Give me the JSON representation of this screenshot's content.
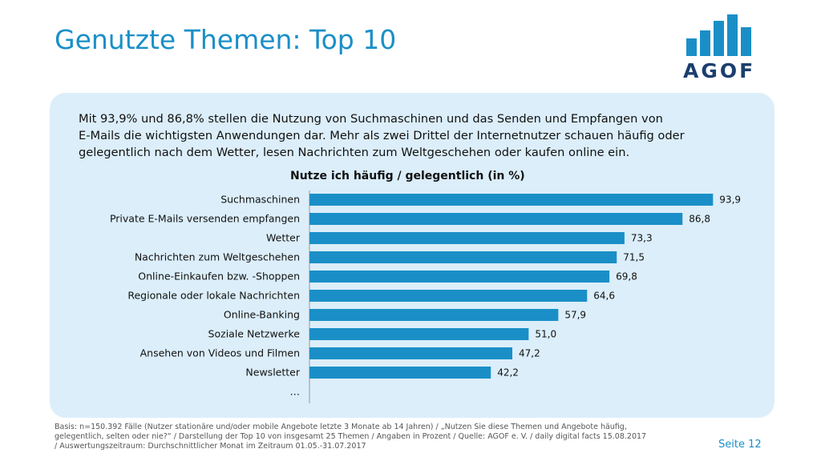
{
  "slide": {
    "title": "Genutzte Themen: Top 10",
    "intro_lines": [
      "Mit 93,9% und 86,8% stellen die Nutzung von Suchmaschinen und das Senden und Empfangen von",
      "E-Mails die wichtigsten Anwendungen dar. Mehr als zwei Drittel der Internetnutzer schauen häufig oder",
      "gelegentlich nach dem Wetter, lesen Nachrichten zum Weltgeschehen oder kaufen online ein."
    ],
    "footnote_lines": [
      "Basis: n=150.392 Fälle (Nutzer stationäre und/oder mobile Angebote letzte 3 Monate ab 14 Jahren) / „Nutzen Sie diese Themen und Angebote häufig,",
      "gelegentlich, selten oder nie?“ / Darstellung der Top 10 von insgesamt 25 Themen / Angaben in Prozent / Quelle: AGOF e. V. / daily digital facts 15.08.2017",
      "/ Auswertungszeitraum: Durchschnittlicher Monat im Zeitraum 01.05.-31.07.2017"
    ],
    "page_label": "Seite 12"
  },
  "logo": {
    "text": "AGOF",
    "color": "#1a8fc7"
  },
  "colors": {
    "accent": "#1a8fc7",
    "panel": "#dbeefa",
    "bar": "#1a8fc7"
  },
  "chart_data": {
    "type": "bar",
    "orientation": "horizontal",
    "title": "Nutze ich häufig / gelegentlich (in %)",
    "categories": [
      "Suchmaschinen",
      "Private E-Mails versenden empfangen",
      "Wetter",
      "Nachrichten zum Weltgeschehen",
      "Online-Einkaufen bzw. -Shoppen",
      "Regionale oder lokale Nachrichten",
      "Online-Banking",
      "Soziale Netzwerke",
      "Ansehen von Videos und Filmen",
      "Newsletter"
    ],
    "values": [
      93.9,
      86.8,
      73.3,
      71.5,
      69.8,
      64.6,
      57.9,
      51.0,
      47.2,
      42.2
    ],
    "value_labels": [
      "93,9",
      "86,8",
      "73,3",
      "71,5",
      "69,8",
      "64,6",
      "57,9",
      "51,0",
      "47,2",
      "42,2"
    ],
    "trailing_category": "…",
    "xlim": [
      0,
      100
    ],
    "grid": false,
    "legend": "none"
  }
}
